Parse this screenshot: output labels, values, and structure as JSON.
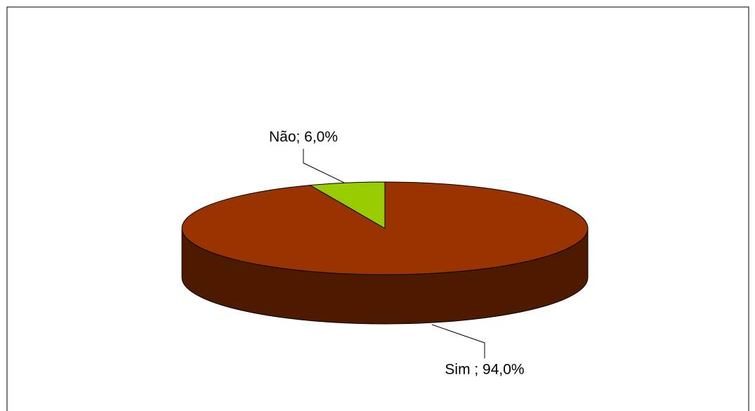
{
  "chart_data": {
    "type": "pie3d",
    "values": [
      94,
      6
    ],
    "value_labels": [
      "Sim ; 94,0%",
      "Não; 6,0%"
    ],
    "colors": [
      "#993300",
      "#99cc00"
    ]
  }
}
